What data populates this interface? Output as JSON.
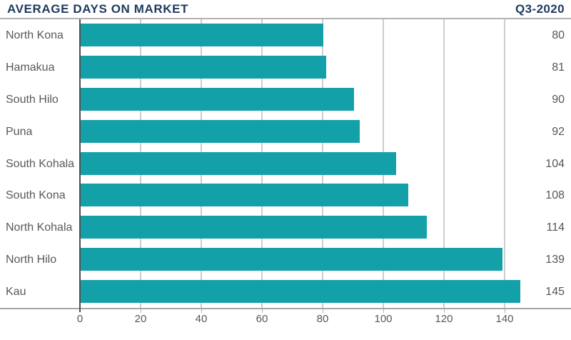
{
  "header": {
    "title": "AVERAGE DAYS ON MARKET",
    "period": "Q3-2020"
  },
  "chart_data": {
    "type": "bar",
    "orientation": "horizontal",
    "title": "AVERAGE DAYS ON MARKET",
    "subtitle": "Q3-2020",
    "categories": [
      "North Kona",
      "Hamakua",
      "South Hilo",
      "Puna",
      "South Kohala",
      "South Kona",
      "North Kohala",
      "North Hilo",
      "Kau"
    ],
    "values": [
      80,
      81,
      90,
      92,
      104,
      108,
      114,
      139,
      145
    ],
    "value_labels": [
      "80",
      "81",
      "90",
      "92",
      "104",
      "108",
      "114",
      "139",
      "145"
    ],
    "xlabel": "",
    "ylabel": "",
    "xlim": [
      0,
      160
    ],
    "x_ticks": [
      0,
      20,
      40,
      60,
      80,
      100,
      120,
      140
    ],
    "grid": "vertical",
    "legend": "none",
    "bar_color": "#14a0a9"
  },
  "colors": {
    "accent_bar": "#14a0a9",
    "title_navy": "#1e3a5f",
    "text_gray": "#58595b",
    "gridline_gray": "#cdcdcd",
    "axis_gray": "#a6a6a6",
    "axis_zero_dark": "#4d4e50"
  }
}
